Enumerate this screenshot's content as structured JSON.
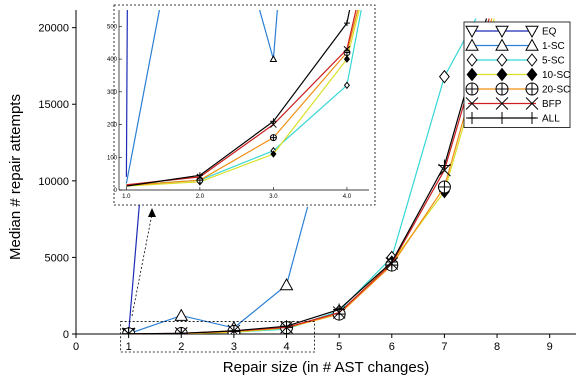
{
  "chart_data": {
    "type": "line",
    "title": "",
    "xlabel": "Repair size (in # AST changes)",
    "ylabel": "Median # repair attempts",
    "xlim": [
      0,
      9.5
    ],
    "ylim": [
      0,
      20500
    ],
    "x_ticks": [
      0,
      1,
      2,
      3,
      4,
      5,
      6,
      7,
      8,
      9
    ],
    "x_tick_labels": [
      "0",
      "1",
      "2",
      "3",
      "4",
      "5",
      "6",
      "7",
      "8",
      "9"
    ],
    "y_ticks": [
      0,
      5000,
      10000,
      15000,
      20000
    ],
    "y_tick_labels": [
      "0",
      "5000",
      "10000",
      "15000",
      "20000"
    ],
    "grid": false,
    "legend_position": "top-right",
    "series": [
      {
        "name": "EQ",
        "color": "#1c2bb5",
        "marker": "triangle-down",
        "points": [
          [
            1,
            40
          ],
          [
            1.5,
            20600
          ]
        ]
      },
      {
        "name": "1-SC",
        "color": "#2b7fd4",
        "marker": "triangle-up",
        "points": [
          [
            1,
            20
          ],
          [
            2,
            1200
          ],
          [
            3,
            400
          ],
          [
            4,
            3200
          ],
          [
            4.4,
            8300
          ]
        ]
      },
      {
        "name": "5-SC",
        "color": "#36d6d6",
        "marker": "diamond-open",
        "points": [
          [
            1,
            15
          ],
          [
            2,
            30
          ],
          [
            3,
            120
          ],
          [
            4,
            320
          ],
          [
            5,
            1500
          ],
          [
            6,
            5000
          ],
          [
            7,
            16800
          ],
          [
            7.6,
            20600
          ]
        ]
      },
      {
        "name": "10-SC",
        "color": "#d8e028",
        "marker": "diamond-filled",
        "points": [
          [
            1,
            12
          ],
          [
            2,
            25
          ],
          [
            3,
            110
          ],
          [
            4,
            400
          ],
          [
            5,
            1300
          ],
          [
            6,
            4700
          ],
          [
            7,
            9300
          ],
          [
            7.95,
            20600
          ]
        ]
      },
      {
        "name": "20-SC",
        "color": "#f08f14",
        "marker": "circle-plus",
        "points": [
          [
            1,
            14
          ],
          [
            2,
            30
          ],
          [
            3,
            160
          ],
          [
            4,
            420
          ],
          [
            5,
            1300
          ],
          [
            6,
            4500
          ],
          [
            7,
            9600
          ],
          [
            7.9,
            20600
          ]
        ]
      },
      {
        "name": "BFP",
        "color": "#cc1f1f",
        "marker": "x",
        "points": [
          [
            1,
            16
          ],
          [
            2,
            40
          ],
          [
            3,
            200
          ],
          [
            4,
            430
          ],
          [
            5,
            1400
          ],
          [
            6,
            4600
          ],
          [
            7,
            10700
          ],
          [
            7.85,
            20600
          ]
        ]
      },
      {
        "name": "ALL",
        "color": "#000000",
        "marker": "plus",
        "points": [
          [
            1,
            12
          ],
          [
            2,
            45
          ],
          [
            3,
            210
          ],
          [
            4,
            510
          ],
          [
            5,
            1600
          ],
          [
            6,
            4700
          ],
          [
            7,
            11000
          ],
          [
            7.8,
            20600
          ]
        ]
      }
    ],
    "inset": {
      "position": "top-left",
      "zoom_of": {
        "x": [
          1,
          4
        ],
        "y": [
          0,
          550
        ]
      },
      "xlim": [
        0.9,
        4.3
      ],
      "ylim": [
        0,
        550
      ],
      "x_ticks": [
        1,
        2,
        3,
        4
      ],
      "x_tick_labels": [
        "1.0",
        "2.0",
        "3.0",
        "4.0"
      ],
      "y_ticks": [
        0,
        100,
        200,
        300,
        400,
        500
      ],
      "y_tick_labels": [
        "0",
        "100",
        "200",
        "300",
        "400",
        "500"
      ]
    }
  }
}
